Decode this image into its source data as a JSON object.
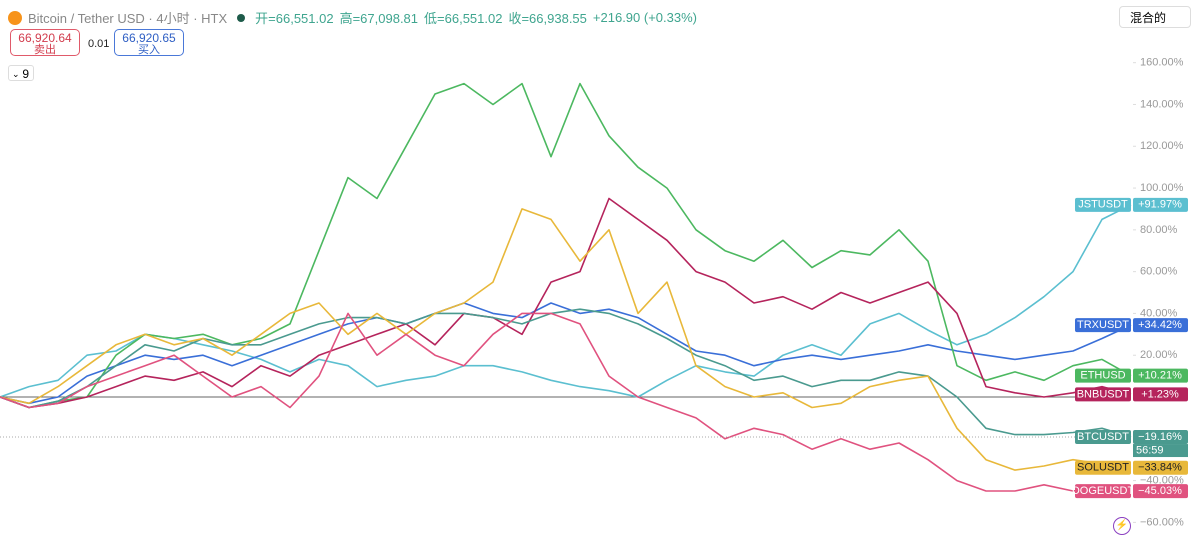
{
  "header": {
    "symbol": "Bitcoin / Tether USD · 4小时 · HTX",
    "open": "开=66,551.02",
    "high": "高=67,098.81",
    "low": "低=66,551.02",
    "close": "收=66,938.55",
    "change": "+216.90 (+0.33%)",
    "sell_price": "66,920.64",
    "sell": "卖出",
    "spread": "0.01",
    "buy_price": "66,920.65",
    "buy": "买入",
    "indicators": "9",
    "mode": "混合的"
  },
  "chart_data": {
    "type": "line",
    "ylim": [
      -67,
      190
    ],
    "yticks": [
      {
        "value": 160,
        "label": "160.00%"
      },
      {
        "value": 140,
        "label": "140.00%"
      },
      {
        "value": 120,
        "label": "120.00%"
      },
      {
        "value": 100,
        "label": "100.00%"
      },
      {
        "value": 80,
        "label": "80.00%"
      },
      {
        "value": 60,
        "label": "60.00%"
      },
      {
        "value": 40,
        "label": "40.00%"
      },
      {
        "value": 20,
        "label": "20.00%"
      },
      {
        "value": -40,
        "label": "−40.00%"
      },
      {
        "value": -60,
        "label": "−60.00%"
      }
    ],
    "countdown": "56:59",
    "series": [
      {
        "name": "JSTUSDT",
        "color": "#5bbfd0",
        "end_label": "+91.97%",
        "values": [
          0,
          5,
          8,
          20,
          22,
          30,
          28,
          25,
          22,
          18,
          12,
          18,
          15,
          5,
          8,
          10,
          15,
          15,
          12,
          8,
          5,
          3,
          0,
          8,
          15,
          12,
          10,
          20,
          25,
          20,
          35,
          40,
          32,
          25,
          30,
          38,
          48,
          60,
          85,
          91.97
        ]
      },
      {
        "name": "TRXUSDT",
        "color": "#3a6fd8",
        "end_label": "+34.42%",
        "values": [
          0,
          -3,
          0,
          10,
          15,
          20,
          18,
          20,
          15,
          20,
          25,
          30,
          35,
          38,
          35,
          40,
          45,
          40,
          38,
          45,
          40,
          42,
          38,
          30,
          22,
          20,
          15,
          18,
          20,
          18,
          20,
          22,
          25,
          22,
          20,
          18,
          20,
          22,
          28,
          34.42
        ]
      },
      {
        "name": "ETHUSD",
        "color": "#4cb860",
        "end_label": "+10.21%",
        "values": [
          0,
          -5,
          -2,
          0,
          20,
          30,
          28,
          30,
          25,
          28,
          35,
          70,
          105,
          95,
          120,
          145,
          150,
          140,
          150,
          115,
          150,
          125,
          110,
          100,
          80,
          70,
          65,
          75,
          62,
          70,
          68,
          80,
          65,
          15,
          8,
          12,
          8,
          15,
          18,
          10.21
        ]
      },
      {
        "name": "BNBUSDT",
        "color": "#b5245c",
        "end_label": "+1.23%",
        "values": [
          0,
          -5,
          -3,
          0,
          5,
          10,
          8,
          12,
          5,
          15,
          10,
          20,
          25,
          30,
          35,
          25,
          40,
          38,
          30,
          55,
          60,
          95,
          85,
          75,
          60,
          55,
          45,
          48,
          42,
          50,
          45,
          50,
          55,
          40,
          5,
          2,
          0,
          2,
          5,
          1.23
        ]
      },
      {
        "name": "BTCUSDT",
        "color": "#4a9a8f",
        "end_label": "−19.16%",
        "values": [
          0,
          -5,
          -2,
          5,
          15,
          25,
          22,
          28,
          25,
          25,
          30,
          35,
          38,
          38,
          35,
          40,
          40,
          38,
          35,
          40,
          42,
          40,
          35,
          28,
          20,
          15,
          8,
          10,
          5,
          8,
          8,
          12,
          10,
          0,
          -15,
          -18,
          -18,
          -17,
          -15,
          -19.16
        ]
      },
      {
        "name": "SOLUSDT",
        "color": "#e8b83a",
        "end_label": "−33.84%",
        "values": [
          0,
          -3,
          5,
          15,
          25,
          30,
          25,
          28,
          20,
          30,
          40,
          45,
          30,
          40,
          30,
          40,
          45,
          55,
          90,
          85,
          65,
          80,
          40,
          55,
          15,
          5,
          0,
          2,
          -5,
          -3,
          5,
          8,
          10,
          -15,
          -30,
          -35,
          -33,
          -30,
          -32,
          -33.84
        ]
      },
      {
        "name": "DOGEUSDT",
        "color": "#e0527f",
        "end_label": "−45.03%",
        "values": [
          0,
          -5,
          -3,
          5,
          10,
          15,
          20,
          10,
          0,
          5,
          -5,
          10,
          40,
          20,
          30,
          20,
          15,
          30,
          40,
          40,
          35,
          10,
          0,
          -5,
          -10,
          -20,
          -15,
          -18,
          -25,
          -20,
          -25,
          -22,
          -30,
          -40,
          -45,
          -45,
          -42,
          -45,
          -43,
          -45.03
        ]
      }
    ]
  }
}
